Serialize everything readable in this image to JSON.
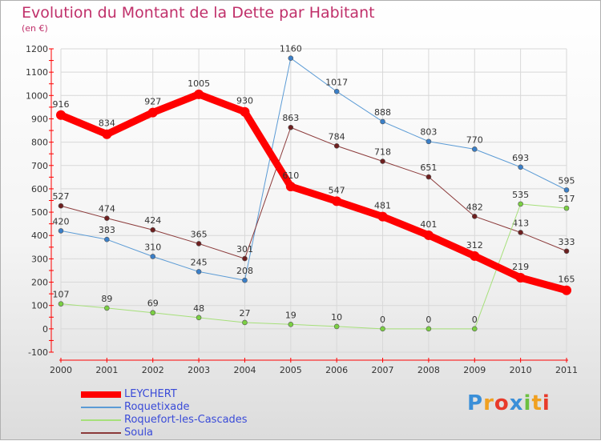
{
  "chart_data": {
    "type": "line",
    "title": "Evolution du Montant de la Dette par Habitant",
    "ylabel": "(en €)",
    "xlabel": "",
    "x": [
      "2000",
      "2001",
      "2002",
      "2003",
      "2004",
      "2005",
      "2006",
      "2007",
      "2008",
      "2009",
      "2010",
      "2011"
    ],
    "ylim": [
      -100,
      1200
    ],
    "yticks": [
      -100,
      0,
      100,
      200,
      300,
      400,
      500,
      600,
      700,
      800,
      900,
      1000,
      1100,
      1200
    ],
    "grid": true,
    "legend_position": "bottom-left",
    "series": [
      {
        "name": "Roquetixade",
        "color": "#5b9bd5",
        "marker": "#3a7fc8",
        "values": [
          420,
          383,
          310,
          245,
          208,
          1160,
          1017,
          888,
          803,
          770,
          693,
          595
        ]
      },
      {
        "name": "Soula",
        "color": "#8b3a3a",
        "marker": "#6e1f1f",
        "values": [
          527,
          474,
          424,
          365,
          301,
          863,
          784,
          718,
          651,
          482,
          413,
          333
        ]
      },
      {
        "name": "Roquefort-les-Cascades",
        "color": "#a6e07a",
        "marker": "#7bd043",
        "values": [
          107,
          89,
          69,
          48,
          27,
          19,
          10,
          0,
          0,
          0,
          535,
          517
        ]
      },
      {
        "name": "LEYCHERT",
        "color": "#ff0000",
        "marker": "#ff0000",
        "values": [
          916,
          834,
          927,
          1005,
          930,
          610,
          547,
          481,
          401,
          312,
          219,
          165
        ]
      }
    ]
  },
  "legend_order": [
    "LEYCHERT",
    "Roquetixade",
    "Roquefort-les-Cascades",
    "Soula"
  ],
  "brand": {
    "letters": [
      "P",
      "r",
      "o",
      "x",
      "i",
      "t",
      "i"
    ],
    "colors": [
      "#3a8fd8",
      "#f0a020",
      "#e83a2a",
      "#3a8fd8",
      "#6cc040",
      "#f0a020",
      "#e83a2a"
    ]
  }
}
